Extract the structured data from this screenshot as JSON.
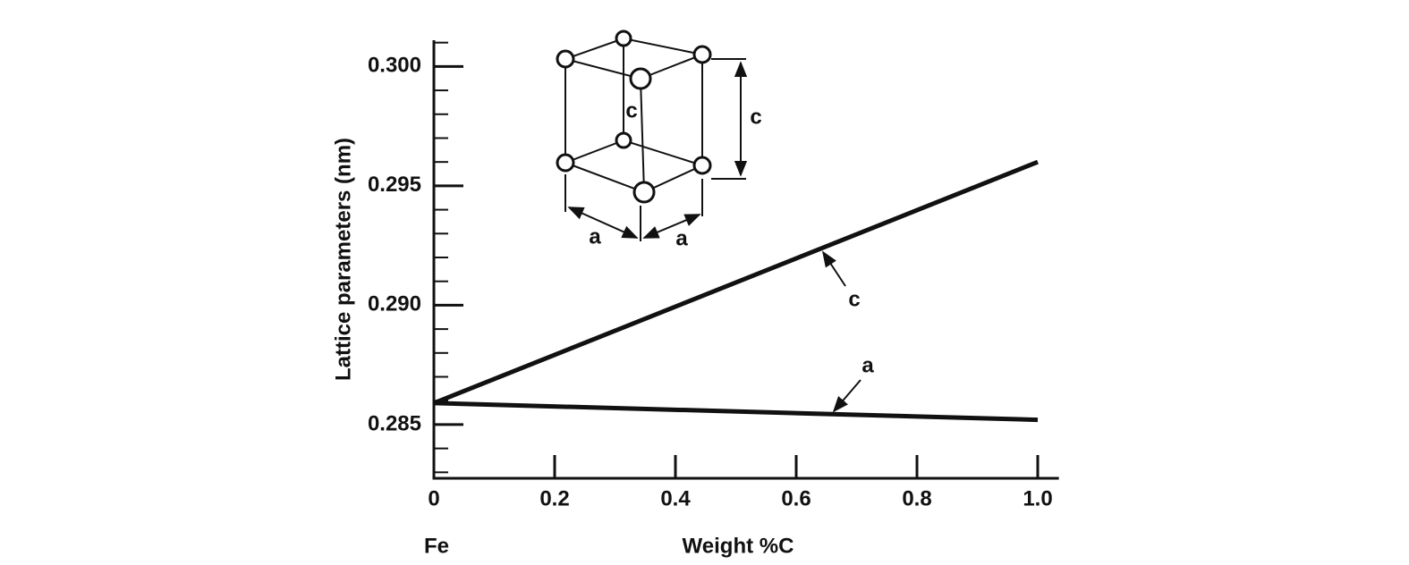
{
  "chart_data": {
    "type": "line",
    "y_label": "Lattice parameters (nm)",
    "x_label": "Weight  %C",
    "x_start_label": "Fe",
    "x": [
      0,
      1.0
    ],
    "series": [
      {
        "name": "c",
        "color": "#111111",
        "values": [
          0.2859,
          0.296
        ]
      },
      {
        "name": "a",
        "color": "#111111",
        "values": [
          0.2859,
          0.2852
        ]
      }
    ],
    "xlim": [
      0,
      1.035
    ],
    "ylim": [
      0.28275,
      0.3011
    ],
    "xticks": [
      0,
      0.2,
      0.4,
      0.6,
      0.8,
      {
        "value": 1.0,
        "label": "1.0"
      }
    ],
    "yticks": [
      0.285,
      0.29,
      0.295,
      0.3
    ],
    "ytick_labels": [
      "0.285",
      "0.290",
      "0.295",
      "0.300"
    ],
    "yminorticks": [
      0.283,
      0.284,
      0.286,
      0.287,
      0.288,
      0.289,
      0.291,
      0.292,
      0.293,
      0.294,
      0.296,
      0.297,
      0.298,
      0.299,
      0.301
    ],
    "inset_labels": [
      "c",
      "c",
      "a",
      "a"
    ]
  }
}
